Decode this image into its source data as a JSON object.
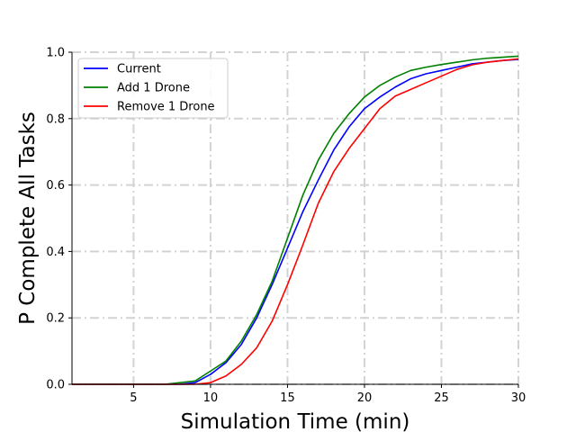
{
  "chart_data": {
    "type": "line",
    "title": "",
    "xlabel": "Simulation Time (min)",
    "ylabel": "P Complete All Tasks",
    "xlim": [
      1,
      30
    ],
    "ylim": [
      0,
      1.0
    ],
    "xticks": [
      5,
      10,
      15,
      20,
      25,
      30
    ],
    "yticks": [
      0.0,
      0.2,
      0.4,
      0.6,
      0.8,
      1.0
    ],
    "xtick_labels": [
      "5",
      "10",
      "15",
      "20",
      "25",
      "30"
    ],
    "ytick_labels": [
      "0.0",
      "0.2",
      "0.4",
      "0.6",
      "0.8",
      "1.0"
    ],
    "grid": true,
    "grid_style": "dash-dot",
    "legend_position": "upper-left",
    "x": [
      1,
      2,
      3,
      4,
      5,
      6,
      7,
      8,
      9,
      10,
      11,
      12,
      13,
      14,
      15,
      16,
      17,
      18,
      19,
      20,
      21,
      22,
      23,
      24,
      25,
      26,
      27,
      28,
      29,
      30
    ],
    "series": [
      {
        "name": "Current",
        "color": "#0000ff",
        "values": [
          0,
          0,
          0,
          0,
          0,
          0,
          0,
          0,
          0.005,
          0.03,
          0.065,
          0.12,
          0.2,
          0.3,
          0.41,
          0.52,
          0.615,
          0.705,
          0.775,
          0.83,
          0.865,
          0.895,
          0.92,
          0.935,
          0.945,
          0.955,
          0.965,
          0.97,
          0.975,
          0.978
        ]
      },
      {
        "name": "Add 1 Drone",
        "color": "#008000",
        "values": [
          0,
          0,
          0,
          0,
          0,
          0,
          0,
          0.005,
          0.01,
          0.04,
          0.07,
          0.13,
          0.21,
          0.31,
          0.44,
          0.57,
          0.675,
          0.755,
          0.815,
          0.865,
          0.9,
          0.925,
          0.945,
          0.955,
          0.963,
          0.97,
          0.977,
          0.982,
          0.985,
          0.988
        ]
      },
      {
        "name": "Remove 1 Drone",
        "color": "#ff0000",
        "values": [
          0,
          0,
          0,
          0,
          0,
          0,
          0,
          0,
          0,
          0.005,
          0.025,
          0.06,
          0.11,
          0.19,
          0.3,
          0.42,
          0.545,
          0.64,
          0.71,
          0.77,
          0.83,
          0.868,
          0.888,
          0.908,
          0.928,
          0.948,
          0.962,
          0.97,
          0.975,
          0.98
        ]
      }
    ]
  }
}
